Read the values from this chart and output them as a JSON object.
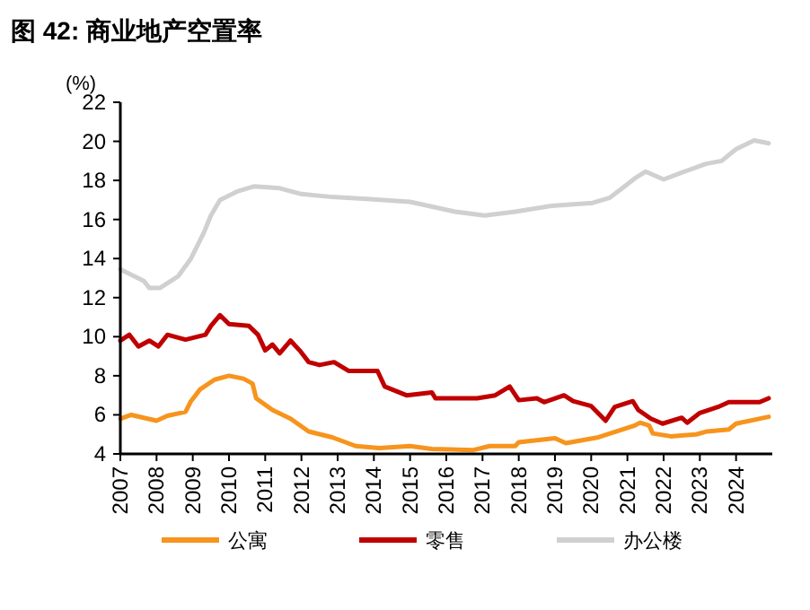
{
  "chart_data": {
    "type": "line",
    "title": "图 42: 商业地产空置率",
    "ylabel": "(%)",
    "xlim": [
      2007,
      2025
    ],
    "xticks": [
      2007,
      2008,
      2009,
      2010,
      2011,
      2012,
      2013,
      2014,
      2015,
      2016,
      2017,
      2018,
      2019,
      2020,
      2021,
      2022,
      2023,
      2024
    ],
    "ylim": [
      4,
      22
    ],
    "yticks": [
      4,
      6,
      8,
      10,
      12,
      14,
      16,
      18,
      20,
      22
    ],
    "grid": false,
    "legend": "bottom",
    "series": [
      {
        "name": "公寓",
        "color": "#f7941d",
        "x": [
          2007,
          2007.3,
          2008,
          2008.3,
          2008.8,
          2008.95,
          2009.2,
          2009.6,
          2010,
          2010.4,
          2010.65,
          2010.75,
          2011.2,
          2011.7,
          2012.2,
          2012.85,
          2013.5,
          2014.15,
          2015,
          2015.6,
          2016.75,
          2017.2,
          2017.9,
          2018,
          2019,
          2019.3,
          2020.2,
          2020.7,
          2021.2,
          2021.35,
          2021.6,
          2021.7,
          2022.2,
          2022.9,
          2023.2,
          2023.8,
          2024,
          2024.9
        ],
        "values": [
          5.8,
          6.0,
          5.7,
          5.95,
          6.15,
          6.7,
          7.3,
          7.8,
          8.0,
          7.85,
          7.6,
          6.85,
          6.25,
          5.8,
          5.15,
          4.85,
          4.4,
          4.3,
          4.4,
          4.25,
          4.2,
          4.4,
          4.4,
          4.6,
          4.8,
          4.55,
          4.85,
          5.15,
          5.45,
          5.6,
          5.45,
          5.05,
          4.9,
          5.0,
          5.15,
          5.25,
          5.55,
          5.9
        ]
      },
      {
        "name": "零售",
        "color": "#c00000",
        "x": [
          2007,
          2007.25,
          2007.5,
          2007.8,
          2008.05,
          2008.3,
          2008.8,
          2009.35,
          2009.5,
          2009.75,
          2010,
          2010.55,
          2010.8,
          2011,
          2011.2,
          2011.4,
          2011.7,
          2011.95,
          2012.2,
          2012.5,
          2012.9,
          2013.3,
          2014.1,
          2014.3,
          2014.9,
          2015.6,
          2015.7,
          2016.35,
          2016.85,
          2017.35,
          2017.75,
          2018,
          2018.5,
          2018.7,
          2019.25,
          2019.5,
          2020,
          2020.4,
          2020.65,
          2021.15,
          2021.3,
          2021.65,
          2021.97,
          2022.5,
          2022.65,
          2023,
          2023.5,
          2023.8,
          2024.65,
          2024.9
        ],
        "values": [
          9.8,
          10.1,
          9.5,
          9.8,
          9.5,
          10.1,
          9.85,
          10.1,
          10.55,
          11.1,
          10.65,
          10.55,
          10.1,
          9.3,
          9.6,
          9.15,
          9.8,
          9.3,
          8.7,
          8.55,
          8.7,
          8.25,
          8.25,
          7.45,
          7.0,
          7.15,
          6.85,
          6.85,
          6.85,
          7.0,
          7.45,
          6.75,
          6.85,
          6.65,
          7.0,
          6.7,
          6.45,
          5.7,
          6.4,
          6.7,
          6.25,
          5.8,
          5.55,
          5.85,
          5.6,
          6.1,
          6.4,
          6.65,
          6.65,
          6.85
        ]
      },
      {
        "name": "办公楼",
        "color": "#d0d0d0",
        "x": [
          2007,
          2007.65,
          2007.8,
          2008.1,
          2008.6,
          2008.95,
          2009.3,
          2009.5,
          2009.75,
          2010.25,
          2010.7,
          2011.4,
          2012,
          2012.85,
          2013.8,
          2015,
          2016.24,
          2017.06,
          2017.9,
          2018.9,
          2020.04,
          2020.5,
          2020.86,
          2021.2,
          2021.5,
          2022,
          2022.5,
          2023.17,
          2023.6,
          2024,
          2024.5,
          2024.9
        ],
        "values": [
          13.45,
          12.85,
          12.5,
          12.5,
          13.1,
          14.0,
          15.3,
          16.2,
          17.0,
          17.45,
          17.7,
          17.6,
          17.3,
          17.15,
          17.05,
          16.9,
          16.4,
          16.2,
          16.4,
          16.7,
          16.85,
          17.1,
          17.6,
          18.1,
          18.45,
          18.05,
          18.4,
          18.85,
          19.0,
          19.6,
          20.05,
          19.9
        ]
      }
    ]
  }
}
